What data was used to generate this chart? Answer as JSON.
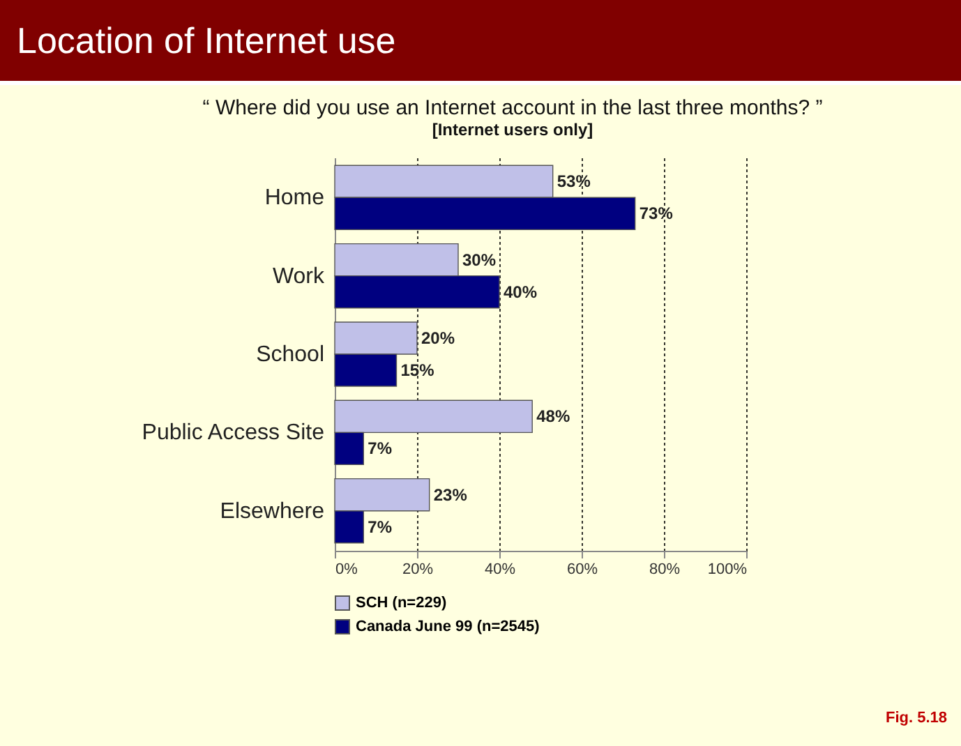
{
  "chart_data": {
    "type": "bar",
    "orientation": "horizontal",
    "title": "Location of Internet use",
    "subtitle": "“ Where did you use an Internet account in the last three months? ”",
    "annotations": [
      "[Internet users only]",
      "Fig. 5.18"
    ],
    "categories": [
      "Home",
      "Work",
      "School",
      "Public Access Site",
      "Elsewhere"
    ],
    "series": [
      {
        "name": "SCH (n=229)",
        "color": "#c0c0e8",
        "values": [
          53,
          30,
          20,
          48,
          23
        ],
        "value_labels": [
          "53%",
          "30%",
          "20%",
          "48%",
          "23%"
        ]
      },
      {
        "name": "Canada June 99 (n=2545)",
        "color": "#000080",
        "values": [
          73,
          40,
          15,
          7,
          7
        ],
        "value_labels": [
          "73%",
          "40%",
          "15%",
          "7%",
          "7%"
        ]
      }
    ],
    "xlim": [
      0,
      100
    ],
    "xticks": [
      {
        "value": 0,
        "label": "0%"
      },
      {
        "value": 20,
        "label": "20%"
      },
      {
        "value": 40,
        "label": "40%"
      },
      {
        "value": 60,
        "label": "60%"
      },
      {
        "value": 80,
        "label": "80%"
      },
      {
        "value": 100,
        "label": "100%"
      }
    ],
    "grid": "x",
    "legend": "bottom"
  }
}
